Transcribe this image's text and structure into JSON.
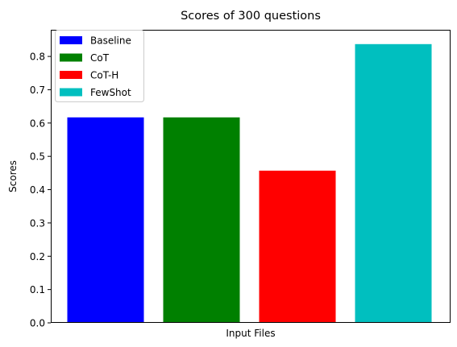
{
  "chart_data": {
    "type": "bar",
    "title": "Scores of 300 questions",
    "xlabel": "Input Files",
    "ylabel": "Scores",
    "ylim": [
      0,
      0.88
    ],
    "yticks": [
      "0.0",
      "0.1",
      "0.2",
      "0.3",
      "0.4",
      "0.5",
      "0.6",
      "0.7",
      "0.8"
    ],
    "grid": false,
    "legend_position": "top-left",
    "series": [
      {
        "name": "Baseline",
        "value": 0.617,
        "color": "#0000ff"
      },
      {
        "name": "CoT",
        "value": 0.617,
        "color": "#008000"
      },
      {
        "name": "CoT-H",
        "value": 0.457,
        "color": "#ff0000"
      },
      {
        "name": "FewShot",
        "value": 0.837,
        "color": "#00bfbf"
      }
    ]
  }
}
